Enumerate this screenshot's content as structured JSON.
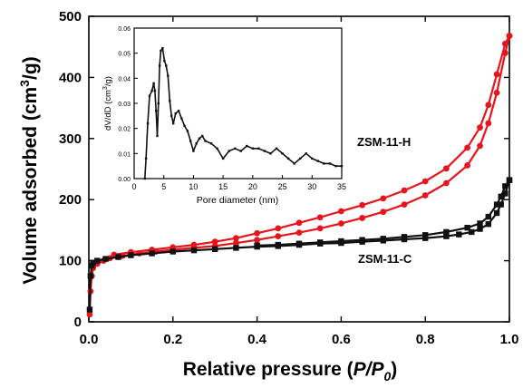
{
  "chart_data": [
    {
      "id": "main",
      "type": "line",
      "xlabel_prefix": "Relative pressure (",
      "xlabel_var": "P/P",
      "xlabel_sub": "0",
      "xlabel_suffix": ")",
      "ylabel_prefix": "Volume adsorbed (cm",
      "ylabel_sup": "3",
      "ylabel_suffix": "/g)",
      "xlim": [
        0,
        1
      ],
      "ylim": [
        0,
        500
      ],
      "xticks": [
        "0.0",
        "0.2",
        "0.4",
        "0.6",
        "0.8",
        "1.0"
      ],
      "yticks": [
        "0",
        "100",
        "200",
        "300",
        "400",
        "500"
      ],
      "grid": false,
      "series": [
        {
          "name": "ZSM-11-H",
          "color": "#e8141c",
          "marker": "circle",
          "adsorption": [
            [
              0.002,
              12
            ],
            [
              0.004,
              50
            ],
            [
              0.007,
              75
            ],
            [
              0.01,
              88
            ],
            [
              0.02,
              95
            ],
            [
              0.035,
              100
            ],
            [
              0.05,
              104
            ],
            [
              0.08,
              108
            ],
            [
              0.12,
              112
            ],
            [
              0.16,
              115
            ],
            [
              0.2,
              118
            ],
            [
              0.25,
              121
            ],
            [
              0.3,
              124
            ],
            [
              0.35,
              129
            ],
            [
              0.4,
              134
            ],
            [
              0.45,
              140
            ],
            [
              0.5,
              146
            ],
            [
              0.55,
              153
            ],
            [
              0.6,
              161
            ],
            [
              0.65,
              170
            ],
            [
              0.7,
              180
            ],
            [
              0.75,
              192
            ],
            [
              0.8,
              207
            ],
            [
              0.85,
              227
            ],
            [
              0.9,
              256
            ],
            [
              0.93,
              288
            ],
            [
              0.95,
              325
            ],
            [
              0.97,
              375
            ],
            [
              0.99,
              440
            ],
            [
              1.0,
              468
            ]
          ],
          "desorption": [
            [
              1.0,
              468
            ],
            [
              0.99,
              455
            ],
            [
              0.97,
              405
            ],
            [
              0.95,
              355
            ],
            [
              0.93,
              318
            ],
            [
              0.9,
              285
            ],
            [
              0.85,
              251
            ],
            [
              0.8,
              230
            ],
            [
              0.75,
              215
            ],
            [
              0.7,
              202
            ],
            [
              0.65,
              191
            ],
            [
              0.6,
              181
            ],
            [
              0.55,
              171
            ],
            [
              0.5,
              162
            ],
            [
              0.45,
              153
            ],
            [
              0.4,
              145
            ],
            [
              0.35,
              137
            ],
            [
              0.3,
              131
            ],
            [
              0.25,
              126
            ],
            [
              0.2,
              122
            ],
            [
              0.15,
              118
            ],
            [
              0.1,
              114
            ],
            [
              0.06,
              110
            ]
          ]
        },
        {
          "name": "ZSM-11-C",
          "color": "#111111",
          "marker": "square",
          "adsorption": [
            [
              0.002,
              20
            ],
            [
              0.004,
              75
            ],
            [
              0.007,
              92
            ],
            [
              0.01,
              97
            ],
            [
              0.02,
              100
            ],
            [
              0.04,
              103
            ],
            [
              0.07,
              106
            ],
            [
              0.1,
              109
            ],
            [
              0.15,
              112
            ],
            [
              0.2,
              115
            ],
            [
              0.25,
              117
            ],
            [
              0.3,
              119
            ],
            [
              0.35,
              121
            ],
            [
              0.4,
              123
            ],
            [
              0.45,
              124
            ],
            [
              0.5,
              126
            ],
            [
              0.55,
              128
            ],
            [
              0.6,
              129
            ],
            [
              0.65,
              131
            ],
            [
              0.7,
              133
            ],
            [
              0.75,
              135
            ],
            [
              0.8,
              137
            ],
            [
              0.85,
              140
            ],
            [
              0.88,
              143
            ],
            [
              0.91,
              147
            ],
            [
              0.93,
              152
            ],
            [
              0.95,
              160
            ],
            [
              0.97,
              178
            ],
            [
              0.98,
              192
            ],
            [
              0.99,
              210
            ],
            [
              1.0,
              232
            ]
          ],
          "desorption": [
            [
              1.0,
              232
            ],
            [
              0.99,
              222
            ],
            [
              0.98,
              205
            ],
            [
              0.97,
              192
            ],
            [
              0.95,
              172
            ],
            [
              0.93,
              161
            ],
            [
              0.9,
              154
            ],
            [
              0.85,
              147
            ],
            [
              0.8,
              142
            ],
            [
              0.75,
              139
            ],
            [
              0.7,
              136
            ],
            [
              0.65,
              134
            ],
            [
              0.6,
              132
            ],
            [
              0.55,
              130
            ],
            [
              0.5,
              128
            ],
            [
              0.45,
              126
            ],
            [
              0.4,
              125
            ]
          ]
        }
      ],
      "labels": {
        "h": "ZSM-11-H",
        "c": "ZSM-11-C"
      }
    },
    {
      "id": "inset",
      "type": "line",
      "xlabel": "Pore diameter (nm)",
      "ylabel_prefix": "dV/dD (cm",
      "ylabel_sup": "3",
      "ylabel_suffix": "/g)",
      "xlim": [
        0,
        35
      ],
      "ylim": [
        0,
        0.06
      ],
      "xticks": [
        "0",
        "5",
        "10",
        "15",
        "20",
        "25",
        "30",
        "35"
      ],
      "yticks": [
        "0.00",
        "0.01",
        "0.02",
        "0.03",
        "0.04",
        "0.05",
        "0.06"
      ],
      "grid": false,
      "series": [
        {
          "color": "#111111",
          "points": [
            [
              1.8,
              0.0
            ],
            [
              2.0,
              0.008
            ],
            [
              2.3,
              0.022
            ],
            [
              2.6,
              0.033
            ],
            [
              3.0,
              0.035
            ],
            [
              3.3,
              0.038
            ],
            [
              3.5,
              0.035
            ],
            [
              3.7,
              0.027
            ],
            [
              3.9,
              0.017
            ],
            [
              4.1,
              0.03
            ],
            [
              4.3,
              0.045
            ],
            [
              4.5,
              0.051
            ],
            [
              4.8,
              0.052
            ],
            [
              5.1,
              0.047
            ],
            [
              5.4,
              0.045
            ],
            [
              5.7,
              0.041
            ],
            [
              6.0,
              0.031
            ],
            [
              6.3,
              0.025
            ],
            [
              6.6,
              0.022
            ],
            [
              7.0,
              0.026
            ],
            [
              7.5,
              0.027
            ],
            [
              8.0,
              0.024
            ],
            [
              8.5,
              0.021
            ],
            [
              9.0,
              0.019
            ],
            [
              9.5,
              0.015
            ],
            [
              10.0,
              0.011
            ],
            [
              10.5,
              0.014
            ],
            [
              11.0,
              0.016
            ],
            [
              11.5,
              0.017
            ],
            [
              12.0,
              0.015
            ],
            [
              13.0,
              0.014
            ],
            [
              14.0,
              0.012
            ],
            [
              15.0,
              0.008
            ],
            [
              16.0,
              0.011
            ],
            [
              17.0,
              0.012
            ],
            [
              18.0,
              0.011
            ],
            [
              19.0,
              0.013
            ],
            [
              20.0,
              0.012
            ],
            [
              21.0,
              0.012
            ],
            [
              22.0,
              0.011
            ],
            [
              23.0,
              0.01
            ],
            [
              24.0,
              0.012
            ],
            [
              25.0,
              0.01
            ],
            [
              26.0,
              0.008
            ],
            [
              27.0,
              0.006
            ],
            [
              28.0,
              0.008
            ],
            [
              29.0,
              0.01
            ],
            [
              30.0,
              0.008
            ],
            [
              31.0,
              0.007
            ],
            [
              32.0,
              0.006
            ],
            [
              33.0,
              0.006
            ],
            [
              34.0,
              0.005
            ],
            [
              35.0,
              0.005
            ]
          ]
        }
      ]
    }
  ]
}
